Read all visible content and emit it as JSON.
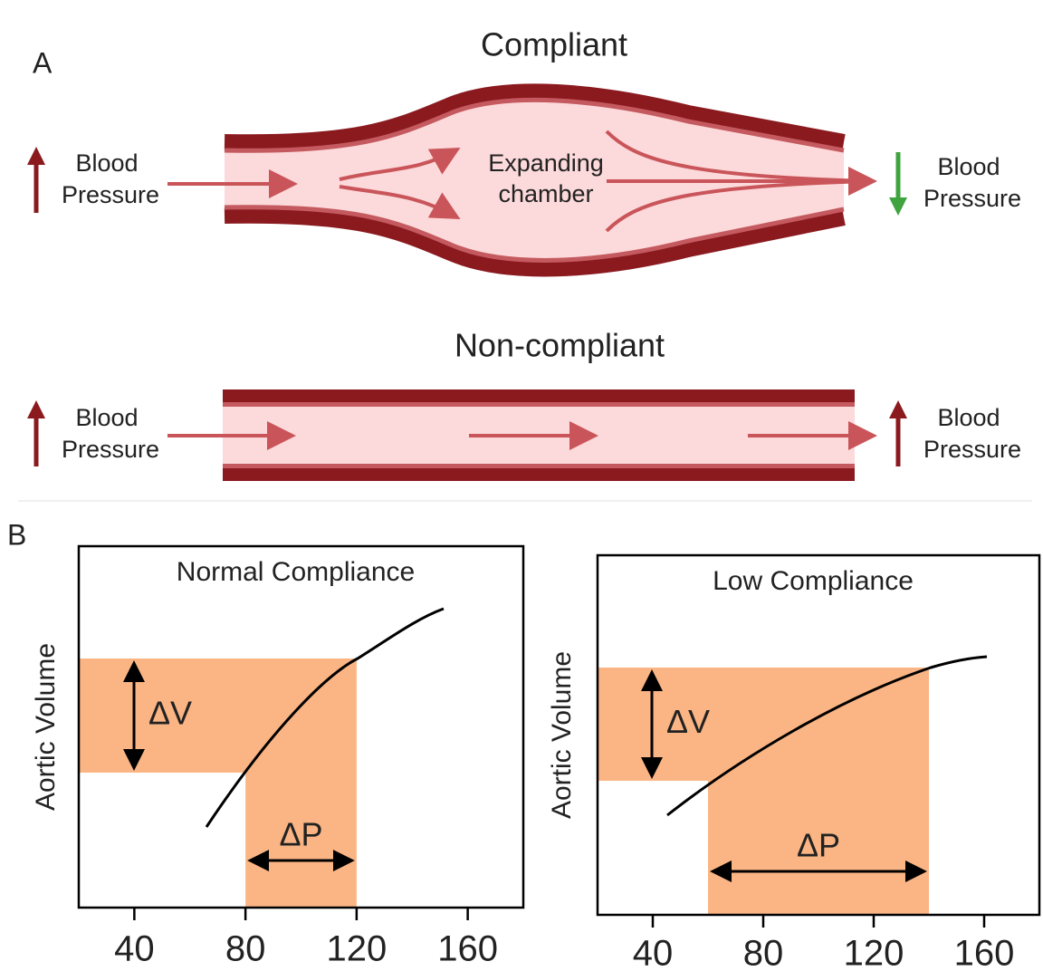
{
  "panel_a": {
    "label": "A",
    "compliant": {
      "title": "Compliant",
      "left_label": [
        "Blood",
        "Pressure"
      ],
      "center_label": [
        "Expanding",
        "chamber"
      ],
      "right_label": [
        "Blood",
        "Pressure"
      ]
    },
    "non_compliant": {
      "title": "Non-compliant",
      "left_label": [
        "Blood",
        "Pressure"
      ],
      "right_label": [
        "Blood",
        "Pressure"
      ]
    }
  },
  "panel_b": {
    "label": "B",
    "plots": [
      {
        "title": "Normal Compliance",
        "y_label": "Aortic Volume",
        "delta_v": "ΔV",
        "delta_p": "ΔP",
        "xlim": [
          20,
          180
        ],
        "xticks": [
          40,
          80,
          120,
          160
        ],
        "pressure_range": [
          80,
          120
        ]
      },
      {
        "title": "Low Compliance",
        "y_label": "Aortic Volume",
        "delta_v": "ΔV",
        "delta_p": "ΔP",
        "xlim": [
          20,
          180
        ],
        "xticks": [
          40,
          80,
          120,
          160
        ],
        "pressure_range": [
          60,
          140
        ]
      }
    ]
  }
}
